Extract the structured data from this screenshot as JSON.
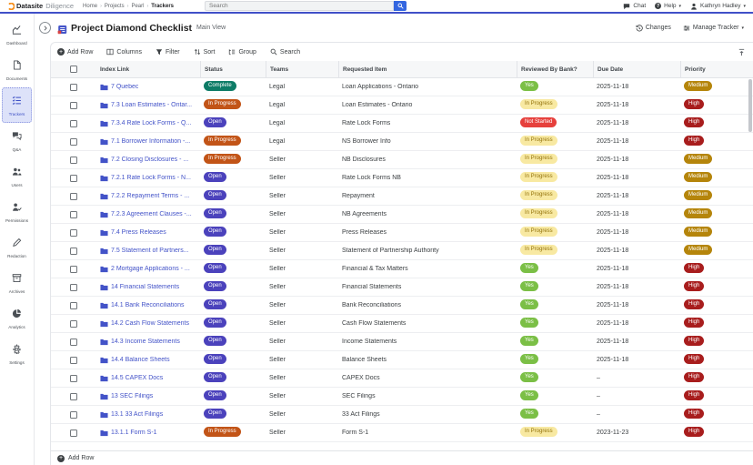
{
  "topbar": {
    "brand": "Datasite",
    "product": "Diligence",
    "breadcrumb": [
      "Home",
      "Projects",
      "Pearl",
      "Trackers"
    ],
    "search_placeholder": "Search",
    "chat_label": "Chat",
    "help_label": "Help",
    "user_name": "Kathryn Hadley"
  },
  "sidebar": {
    "items": [
      {
        "label": "Dashboard",
        "icon": "dashboard-icon",
        "active": false
      },
      {
        "label": "Documents",
        "icon": "documents-icon",
        "active": false
      },
      {
        "label": "Trackers",
        "icon": "trackers-icon",
        "active": true
      },
      {
        "label": "Q&A",
        "icon": "qa-icon",
        "active": false
      },
      {
        "label": "Users",
        "icon": "users-icon",
        "active": false
      },
      {
        "label": "Permissions",
        "icon": "permissions-icon",
        "active": false
      },
      {
        "label": "Redaction",
        "icon": "redaction-icon",
        "active": false
      },
      {
        "label": "Archives",
        "icon": "archives-icon",
        "active": false
      },
      {
        "label": "Analytics",
        "icon": "analytics-icon",
        "active": false
      },
      {
        "label": "Settings",
        "icon": "settings-icon",
        "active": false
      }
    ]
  },
  "tracker_header": {
    "title": "Project Diamond Checklist",
    "view_label": "Main View",
    "changes_label": "Changes",
    "manage_label": "Manage Tracker"
  },
  "toolbar": {
    "add_row": "Add Row",
    "columns": "Columns",
    "filter": "Filter",
    "sort": "Sort",
    "group": "Group",
    "search": "Search"
  },
  "table": {
    "columns": [
      "Index Link",
      "Status",
      "Teams",
      "Requested Item",
      "Reviewed By Bank?",
      "Due Date",
      "Priority"
    ],
    "rows": [
      {
        "index_link": "7 Quebec",
        "status": "Complete",
        "team": "Legal",
        "requested_item": "Loan Applications - Ontario",
        "reviewed": "Yes",
        "due_date": "2025-11-18",
        "priority": "Medium"
      },
      {
        "index_link": "7.3 Loan Estimates - Ontar...",
        "status": "In Progress",
        "team": "Legal",
        "requested_item": "Loan Estimates - Ontario",
        "reviewed": "In Progress",
        "due_date": "2025-11-18",
        "priority": "High"
      },
      {
        "index_link": "7.3.4 Rate Lock Forms - Q...",
        "status": "Open",
        "team": "Legal",
        "requested_item": "Rate Lock Forms",
        "reviewed": "Not Started",
        "due_date": "2025-11-18",
        "priority": "High"
      },
      {
        "index_link": "7.1 Borrower Information -...",
        "status": "In Progress",
        "team": "Legal",
        "requested_item": "NS Borrower Info",
        "reviewed": "In Progress",
        "due_date": "2025-11-18",
        "priority": "High"
      },
      {
        "index_link": "7.2 Closing Disclosures - ...",
        "status": "In Progress",
        "team": "Seller",
        "requested_item": "NB Disclosures",
        "reviewed": "In Progress",
        "due_date": "2025-11-18",
        "priority": "Medium"
      },
      {
        "index_link": "7.2.1 Rate Lock Forms - N...",
        "status": "Open",
        "team": "Seller",
        "requested_item": "Rate Lock Forms NB",
        "reviewed": "In Progress",
        "due_date": "2025-11-18",
        "priority": "Medium"
      },
      {
        "index_link": "7.2.2 Repayment Terms - ...",
        "status": "Open",
        "team": "Seller",
        "requested_item": "Repayment",
        "reviewed": "In Progress",
        "due_date": "2025-11-18",
        "priority": "Medium"
      },
      {
        "index_link": "7.2.3 Agreement Clauses -...",
        "status": "Open",
        "team": "Seller",
        "requested_item": "NB Agreements",
        "reviewed": "In Progress",
        "due_date": "2025-11-18",
        "priority": "Medium"
      },
      {
        "index_link": "7.4 Press Releases",
        "status": "Open",
        "team": "Seller",
        "requested_item": "Press Releases",
        "reviewed": "In Progress",
        "due_date": "2025-11-18",
        "priority": "Medium"
      },
      {
        "index_link": "7.5 Statement of Partners...",
        "status": "Open",
        "team": "Seller",
        "requested_item": "Statement of Partnership Authority",
        "reviewed": "In Progress",
        "due_date": "2025-11-18",
        "priority": "Medium"
      },
      {
        "index_link": "2 Mortgage Applications - ...",
        "status": "Open",
        "team": "Seller",
        "requested_item": "Financial & Tax Matters",
        "reviewed": "Yes",
        "due_date": "2025-11-18",
        "priority": "High"
      },
      {
        "index_link": "14 Financial Statements",
        "status": "Open",
        "team": "Seller",
        "requested_item": "Financial Statements",
        "reviewed": "Yes",
        "due_date": "2025-11-18",
        "priority": "High"
      },
      {
        "index_link": "14.1 Bank Reconciliations",
        "status": "Open",
        "team": "Seller",
        "requested_item": "Bank Reconciliations",
        "reviewed": "Yes",
        "due_date": "2025-11-18",
        "priority": "High"
      },
      {
        "index_link": "14.2 Cash Flow Statements",
        "status": "Open",
        "team": "Seller",
        "requested_item": "Cash Flow Statements",
        "reviewed": "Yes",
        "due_date": "2025-11-18",
        "priority": "High"
      },
      {
        "index_link": "14.3 Income Statements",
        "status": "Open",
        "team": "Seller",
        "requested_item": "Income Statements",
        "reviewed": "Yes",
        "due_date": "2025-11-18",
        "priority": "High"
      },
      {
        "index_link": "14.4 Balance Sheets",
        "status": "Open",
        "team": "Seller",
        "requested_item": "Balance Sheets",
        "reviewed": "Yes",
        "due_date": "2025-11-18",
        "priority": "High"
      },
      {
        "index_link": "14.5 CAPEX Docs",
        "status": "Open",
        "team": "Seller",
        "requested_item": "CAPEX Docs",
        "reviewed": "Yes",
        "due_date": "–",
        "priority": "High"
      },
      {
        "index_link": "13 SEC Filings",
        "status": "Open",
        "team": "Seller",
        "requested_item": "SEC Filings",
        "reviewed": "Yes",
        "due_date": "–",
        "priority": "High"
      },
      {
        "index_link": "13.1 33 Act Filings",
        "status": "Open",
        "team": "Seller",
        "requested_item": "33 Act Filings",
        "reviewed": "Yes",
        "due_date": "–",
        "priority": "High"
      },
      {
        "index_link": "13.1.1 Form S-1",
        "status": "In Progress",
        "team": "Seller",
        "requested_item": "Form S-1",
        "reviewed": "In Progress",
        "due_date": "2023-11-23",
        "priority": "High"
      }
    ]
  },
  "footer": {
    "add_row": "Add Row"
  },
  "colors": {
    "accent_line": "#4050c8",
    "link": "#4353c8",
    "logo_orange": "#f7901e",
    "search_button": "#3366e0",
    "status_complete": "#0e7c67",
    "status_in_progress": "#c25417",
    "status_open": "#4b42bc",
    "reviewed_yes": "#7bbf46",
    "reviewed_in_progress_bg": "#f8e9a2",
    "reviewed_not_started": "#e6403c",
    "priority_medium": "#b5850b",
    "priority_high": "#a81d1d"
  }
}
